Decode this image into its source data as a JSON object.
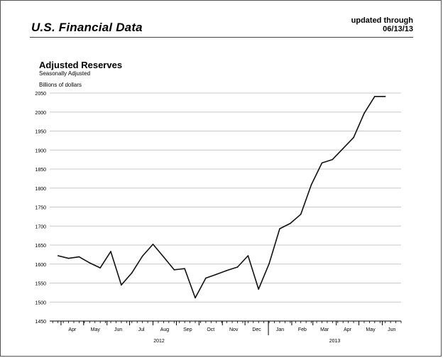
{
  "header": {
    "title": "U.S. Financial Data",
    "updated_line1": "updated through",
    "updated_line2": "06/13/13"
  },
  "chart_data": {
    "type": "line",
    "title": "Adjusted Reserves",
    "subtitle": "Seasonally Adjusted",
    "ylabel": "Billions of dollars",
    "xlabel": "",
    "ylim": [
      1450,
      2050
    ],
    "yticks": [
      1450,
      1500,
      1550,
      1600,
      1650,
      1700,
      1750,
      1800,
      1850,
      1900,
      1950,
      2000,
      2050
    ],
    "grid": true,
    "month_labels": [
      "Apr",
      "May",
      "Jun",
      "Jul",
      "Aug",
      "Sep",
      "Oct",
      "Nov",
      "Dec",
      "Jan",
      "Feb",
      "Mar",
      "Apr",
      "May",
      "Jun"
    ],
    "year_labels": [
      "2012",
      "2013"
    ],
    "series": [
      {
        "x": [
          "2012-03-28",
          "2012-04-11",
          "2012-04-25",
          "2012-05-09",
          "2012-05-23",
          "2012-06-06",
          "2012-06-20",
          "2012-07-04",
          "2012-07-18",
          "2012-08-01",
          "2012-08-15",
          "2012-08-29",
          "2012-09-12",
          "2012-09-26",
          "2012-10-10",
          "2012-10-24",
          "2012-11-07",
          "2012-11-21",
          "2012-12-05",
          "2012-12-19",
          "2013-01-02",
          "2013-01-16",
          "2013-01-30",
          "2013-02-13",
          "2013-02-27",
          "2013-03-13",
          "2013-03-27",
          "2013-04-10",
          "2013-04-24",
          "2013-05-08",
          "2013-05-22",
          "2013-06-05"
        ],
        "values": [
          1622,
          1615,
          1619,
          1603,
          1590,
          1633,
          1545,
          1577,
          1621,
          1652,
          1619,
          1585,
          1588,
          1511,
          1563,
          1573,
          1583,
          1592,
          1622,
          1534,
          1601,
          1693,
          1707,
          1731,
          1809,
          1866,
          1875,
          1904,
          1933,
          1997,
          2041,
          2041
        ]
      }
    ]
  }
}
